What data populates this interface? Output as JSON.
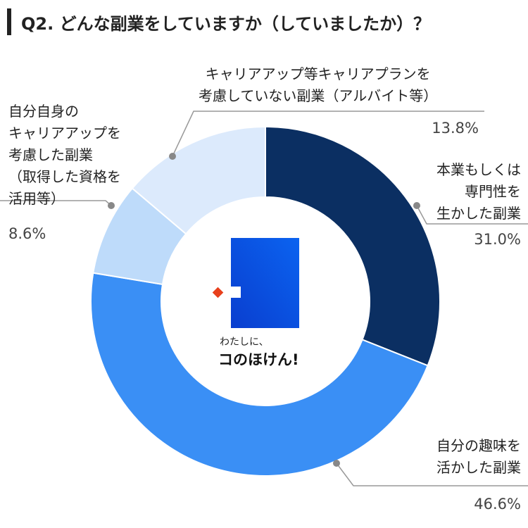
{
  "chart_data": {
    "type": "donut",
    "title": "Q2. どんな副業をしていますか（していましたか）？",
    "categories": [
      "本業もしくは\n専門性を\n生かした副業",
      "自分の趣味を\n活かした副業",
      "自分自身の\nキャリアアップを\n考慮した副業\n（取得した資格を\n活用等）",
      "キャリアアップ等キャリアプランを\n考慮していない副業（アルバイト等）"
    ],
    "values": [
      31.0,
      46.6,
      8.6,
      13.8
    ],
    "value_labels": [
      "31.0%",
      "46.6%",
      "8.6%",
      "13.8%"
    ],
    "colors": [
      "#0b2f62",
      "#3a8ff5",
      "#bedbfa",
      "#dceafc"
    ]
  },
  "logo": {
    "tagline": "わたしに、",
    "name": "コのほけん!"
  }
}
